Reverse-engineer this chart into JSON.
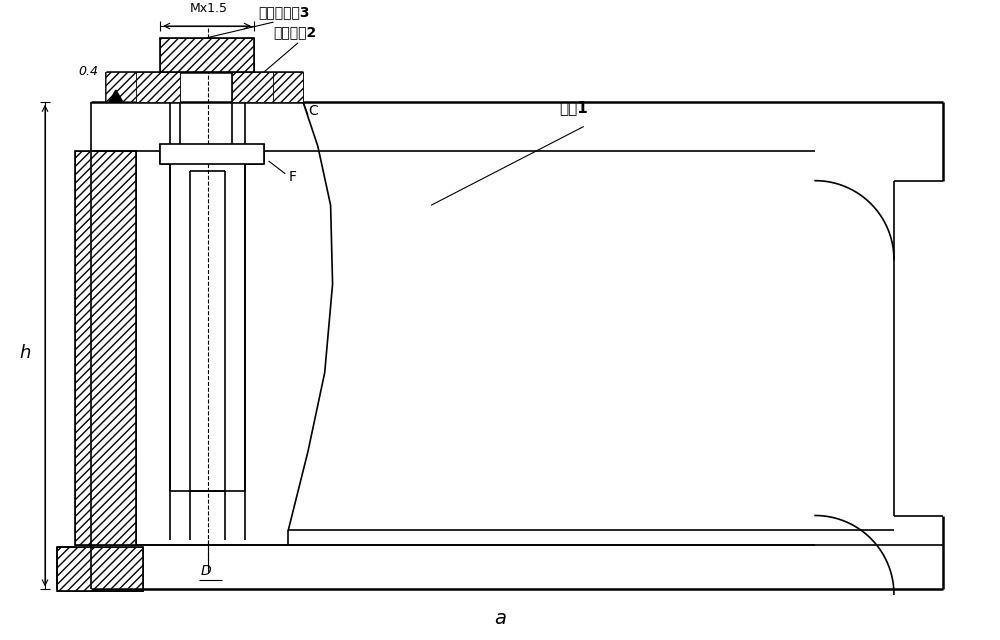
{
  "title": "a",
  "bg_color": "#ffffff",
  "line_color": "#000000",
  "labels": {
    "thread_locator": "螺紋定位奃3",
    "locator_sleeve": "定位袖奃2",
    "bracket": "支杧1",
    "C": "C",
    "F": "F",
    "D": "D",
    "h": "h",
    "dim1": "0.4",
    "dim2": "Mx1.5"
  },
  "fig_width": 10.0,
  "fig_height": 6.4,
  "dpi": 100
}
